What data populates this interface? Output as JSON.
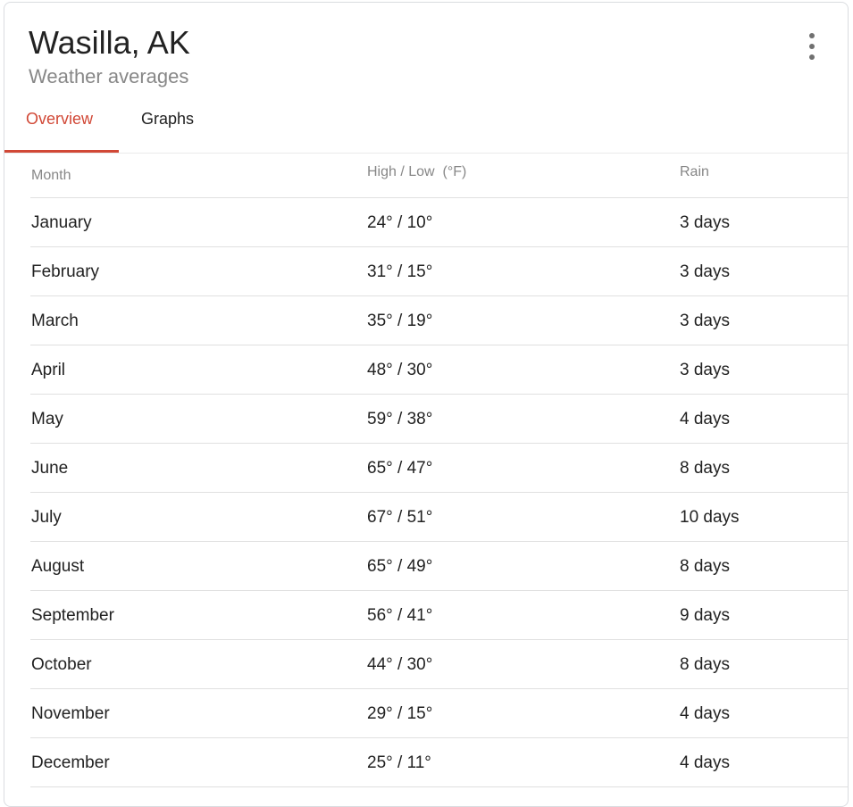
{
  "header": {
    "title": "Wasilla, AK",
    "subtitle": "Weather averages",
    "menu_icon": "more-vert-icon"
  },
  "tabs": [
    {
      "label": "Overview",
      "active": true
    },
    {
      "label": "Graphs",
      "active": false
    }
  ],
  "accent_color": "#d14836",
  "table": {
    "columns": [
      "Month",
      "High / Low  (°F)",
      "Rain"
    ],
    "rows": [
      {
        "month": "January",
        "temp": "24° / 10°",
        "rain": "3 days"
      },
      {
        "month": "February",
        "temp": "31° / 15°",
        "rain": "3 days"
      },
      {
        "month": "March",
        "temp": "35° / 19°",
        "rain": "3 days"
      },
      {
        "month": "April",
        "temp": "48° / 30°",
        "rain": "3 days"
      },
      {
        "month": "May",
        "temp": "59° / 38°",
        "rain": "4 days"
      },
      {
        "month": "June",
        "temp": "65° / 47°",
        "rain": "8 days"
      },
      {
        "month": "July",
        "temp": "67° / 51°",
        "rain": "10 days"
      },
      {
        "month": "August",
        "temp": "65° / 49°",
        "rain": "8 days"
      },
      {
        "month": "September",
        "temp": "56° / 41°",
        "rain": "9 days"
      },
      {
        "month": "October",
        "temp": "44° / 30°",
        "rain": "8 days"
      },
      {
        "month": "November",
        "temp": "29° / 15°",
        "rain": "4 days"
      },
      {
        "month": "December",
        "temp": "25° / 11°",
        "rain": "4 days"
      }
    ]
  }
}
